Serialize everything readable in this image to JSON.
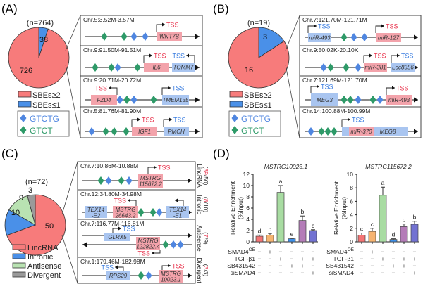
{
  "colors": {
    "pie_red": "#f77b7b",
    "pie_blue": "#4a90e8",
    "pie_green": "#b9e2b2",
    "pie_gray": "#9a9a9a",
    "gene_pink": "#f3a3ab",
    "gene_blue": "#a9c5f0",
    "motif_blue": "#4f86e0",
    "motif_green": "#2e9a68",
    "tss_red": "#e8304a",
    "tss_blue": "#3a7de0"
  },
  "motif_legend": [
    {
      "label": "GTCTG",
      "color": "#4f86e0",
      "icon": "blue-diamond"
    },
    {
      "label": "GTCT",
      "color": "#2e9a68",
      "icon": "green-diamond"
    }
  ],
  "panels": {
    "A": {
      "label": "(A)",
      "n": "(n=764)",
      "legend": [
        "SBEs≥2",
        "SBEs≤1"
      ],
      "rows": [
        {
          "coord": "Chr.5:3.52M-3.57M",
          "genes": [
            {
              "name": [
                "WNT7B"
              ],
              "tss": "TSS"
            }
          ]
        },
        {
          "coord": "Chr.9:91.50M-91.51M",
          "genes": [
            {
              "name": [
                "IL6"
              ],
              "tss": "TSS"
            },
            {
              "name": [
                "TOMM7"
              ],
              "tss": "TSS"
            }
          ]
        },
        {
          "coord": "Chr.9:20.71M-20.72M",
          "genes": [
            {
              "name": [
                "FZD4"
              ],
              "tss": "TSS"
            },
            {
              "name": [
                "TMEM135"
              ],
              "tss": "TSS"
            }
          ]
        },
        {
          "coord": "Chr.5:81.76M-81.90M",
          "genes": [
            {
              "name": [
                "IGF1"
              ],
              "tss": "TSS"
            },
            {
              "name": [
                "PMCH"
              ],
              "tss": "TSS"
            }
          ]
        }
      ]
    },
    "B": {
      "label": "(B)",
      "n": "(n=19)",
      "legend": [
        "SBEs≥2",
        "SBEs≤1"
      ],
      "rows": [
        {
          "coord": "Chr.7:121.70M-121.71M",
          "genes": [
            {
              "name": [
                "miR-493"
              ],
              "tss": "TSS"
            },
            {
              "name": [
                "miR-127"
              ],
              "tss": "TSS"
            }
          ]
        },
        {
          "coord": "Chr.9:50.02K-20.10K",
          "genes": [
            {
              "name": [
                "miR-381"
              ],
              "tss": "TSS"
            },
            {
              "name": [
                "Loc8356"
              ],
              "tss": "TSS"
            }
          ]
        },
        {
          "coord": "Chr.7:121.69M-121.70M",
          "genes": [
            {
              "name": [
                "MEG3"
              ],
              "tss": "TSS"
            },
            {
              "name": [
                "miR-493"
              ],
              "tss": "TSS"
            }
          ]
        },
        {
          "coord": "Chr.14:100.88M-100.99M",
          "genes": [
            {
              "name": [
                "MEG8"
              ],
              "tss": "TSS"
            },
            {
              "name": [
                "miR-370"
              ]
            }
          ]
        }
      ]
    },
    "C": {
      "label": "(C)",
      "n": "(n=72)",
      "legend": [
        "LincRNA",
        "Intronic",
        "Antisense",
        "Divergent"
      ],
      "rows": [
        {
          "coord": "Chr.7:10.86M-10.88M",
          "genes": [
            {
              "name": [
                "MSTRG",
                "115672.2"
              ],
              "tss": "TSS"
            }
          ],
          "side": {
            "type": "LincRNA",
            "hit": "39",
            "total": "/50"
          }
        },
        {
          "coord": "Chr.12:34.80M-34.98M",
          "genes": [
            {
              "name": [
                "TEX14",
                "-E2"
              ]
            },
            {
              "name": [
                "MSTRG",
                "26643.2"
              ],
              "tss": "TSS"
            },
            {
              "name": [
                "TEX14",
                "-E1"
              ]
            }
          ],
          "side": {
            "type": "Intronic",
            "hit": "8",
            "total": "/10"
          }
        },
        {
          "coord": "Chr.7:116.77M-116.81M",
          "genes": [
            {
              "name": [
                "GLRX5"
              ],
              "tss": "TSS"
            },
            {
              "name": [
                "MSTRG",
                "122822.4"
              ],
              "tss": "TSS"
            }
          ],
          "side": {
            "type": "Antisense",
            "hit": "7",
            "total": "/9"
          }
        },
        {
          "coord": "Chr.1:179.46M-182.98M",
          "genes": [
            {
              "name": [
                "RPS29"
              ],
              "tss": "TSS"
            },
            {
              "name": [
                "MSTRG",
                "10023.1"
              ],
              "tss": "TSS"
            }
          ],
          "side": {
            "type": "Divergent",
            "hit": "3",
            "total": "/3"
          }
        }
      ]
    },
    "D": {
      "label": "(D)",
      "treatments": [
        {
          "label": "SMAD4",
          "sup": "OE",
          "signs": [
            "−",
            "+",
            "−",
            "−",
            "−",
            "−"
          ]
        },
        {
          "label": "TGF-β1",
          "sup": "",
          "signs": [
            "−",
            "−",
            "+",
            "−",
            "+",
            "+"
          ]
        },
        {
          "label": "SB431542",
          "sup": "",
          "signs": [
            "−",
            "−",
            "−",
            "+",
            "+",
            "−"
          ]
        },
        {
          "label": "siSMAD4",
          "sup": "",
          "signs": [
            "−",
            "−",
            "−",
            "−",
            "−",
            "+"
          ]
        }
      ]
    }
  },
  "chart_data": [
    {
      "type": "pie",
      "panel": "A",
      "title": "(n=764)",
      "slices": [
        {
          "name": "SBEs≤1",
          "value": 38,
          "color": "#4a90e8"
        },
        {
          "name": "SBEs≥2",
          "value": 726,
          "color": "#f77b7b"
        }
      ]
    },
    {
      "type": "pie",
      "panel": "B",
      "title": "(n=19)",
      "slices": [
        {
          "name": "SBEs≤1",
          "value": 3,
          "color": "#4a90e8"
        },
        {
          "name": "SBEs≥2",
          "value": 16,
          "color": "#f77b7b"
        }
      ]
    },
    {
      "type": "pie",
      "panel": "C",
      "title": "(n=72)",
      "slices": [
        {
          "name": "LincRNA",
          "value": 50,
          "color": "#f77b7b"
        },
        {
          "name": "Intronic",
          "value": 10,
          "color": "#4a90e8"
        },
        {
          "name": "Antisense",
          "value": 9,
          "color": "#b9e2b2"
        },
        {
          "name": "Divergent",
          "value": 3,
          "color": "#9a9a9a"
        }
      ]
    },
    {
      "type": "bar",
      "panel": "D",
      "title": "MSTRG10023.1",
      "ylabel": [
        "Relative Enrichment",
        "(%Input)"
      ],
      "ylim": [
        0,
        12
      ],
      "yticks": [
        0,
        2,
        4,
        6,
        8,
        10,
        12
      ],
      "values": [
        1.0,
        1.2,
        8.8,
        0.55,
        3.8,
        2.0
      ],
      "errors": [
        0.2,
        0.3,
        1.2,
        0.1,
        0.8,
        0.15
      ],
      "letters": [
        "d",
        "d",
        "a",
        "e",
        "b",
        "c"
      ],
      "colors": [
        "#f47474",
        "#f6b470",
        "#a8dca2",
        "#3d8fe8",
        "#b47cb8",
        "#7272d2"
      ]
    },
    {
      "type": "bar",
      "panel": "D",
      "title": "MSTRG115672.2",
      "ylabel": [
        "Relative Enrichment",
        "(%Input)"
      ],
      "ylim": [
        0,
        10
      ],
      "yticks": [
        0,
        2,
        4,
        6,
        8,
        10
      ],
      "values": [
        1.0,
        1.55,
        6.9,
        0.35,
        2.25,
        2.6
      ],
      "errors": [
        0.3,
        0.45,
        1.2,
        0.1,
        0.4,
        0.45
      ],
      "letters": [
        "c",
        "c",
        "a",
        "d",
        "b",
        "b"
      ],
      "colors": [
        "#f47474",
        "#f6b470",
        "#a8dca2",
        "#3d8fe8",
        "#b47cb8",
        "#7272d2"
      ]
    }
  ]
}
